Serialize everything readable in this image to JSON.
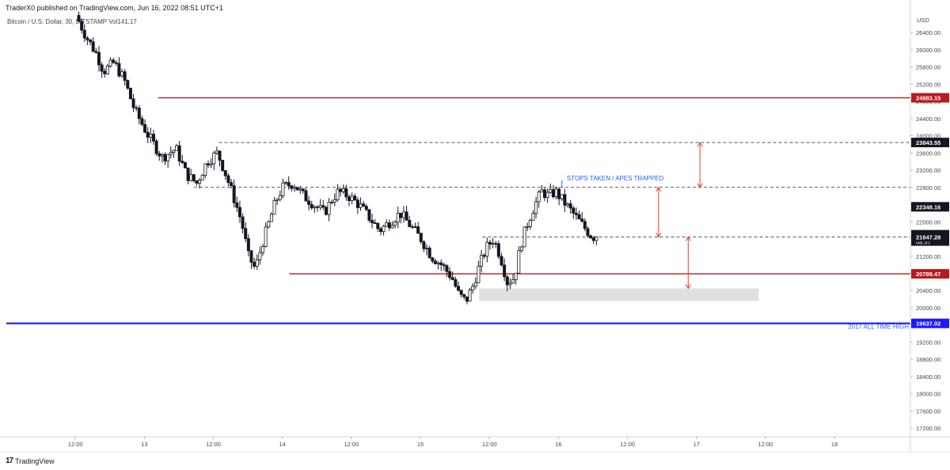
{
  "header": {
    "publisher": "TraderX0 published on TradingView.com, Jun 16, 2022 08:51 UTC+1",
    "symbol": "Bitcoin / U.S. Dollar, 30, BITSTAMP",
    "volume": "Vol141.17"
  },
  "footer": {
    "logo_mark": "17",
    "logo_text": "TradingView"
  },
  "colors": {
    "up": "#ffffff",
    "down": "#131722",
    "red_line": "#b71c1c",
    "blue_line": "#1a1aff",
    "arrow": "#e53935",
    "zone": "#e0e0e2",
    "dash": "#555555",
    "last_price": "#131722"
  },
  "chart_data": {
    "type": "candlestick",
    "title": "Bitcoin / U.S. Dollar, 30, BITSTAMP",
    "ylabel": "USD",
    "ylim": [
      17000,
      26900
    ],
    "yticks": [
      "26400.00",
      "26000.00",
      "25600.00",
      "25200.00",
      "24800.00",
      "24400.00",
      "24000.00",
      "23600.00",
      "23200.00",
      "22800.00",
      "22400.00",
      "22000.00",
      "21600.00",
      "21200.00",
      "20800.00",
      "20400.00",
      "20000.00",
      "19600.00",
      "19200.00",
      "18800.00",
      "18400.00",
      "18000.00",
      "17600.00",
      "17200.00"
    ],
    "xrange": [
      0,
      13.1
    ],
    "xticks": [
      {
        "label": "12:00",
        "pos": 1.0
      },
      {
        "label": "13",
        "pos": 2.0
      },
      {
        "label": "12:00",
        "pos": 3.0
      },
      {
        "label": "14",
        "pos": 4.0
      },
      {
        "label": "12:00",
        "pos": 5.0
      },
      {
        "label": "15",
        "pos": 6.0
      },
      {
        "label": "12:00",
        "pos": 7.0
      },
      {
        "label": "16",
        "pos": 8.0
      },
      {
        "label": "12:00",
        "pos": 9.0
      },
      {
        "label": "17",
        "pos": 10.0
      },
      {
        "label": "12:00",
        "pos": 11.0
      },
      {
        "label": "18",
        "pos": 12.0
      }
    ],
    "price_path": [
      [
        1.05,
        26800
      ],
      [
        1.2,
        26300
      ],
      [
        1.35,
        25900
      ],
      [
        1.45,
        25500
      ],
      [
        1.6,
        25700
      ],
      [
        1.75,
        25300
      ],
      [
        1.9,
        24600
      ],
      [
        2.1,
        24000
      ],
      [
        2.3,
        23500
      ],
      [
        2.5,
        23700
      ],
      [
        2.65,
        23100
      ],
      [
        2.8,
        22900
      ],
      [
        2.95,
        23400
      ],
      [
        3.1,
        23600
      ],
      [
        3.2,
        23200
      ],
      [
        3.35,
        22500
      ],
      [
        3.45,
        22000
      ],
      [
        3.55,
        21200
      ],
      [
        3.65,
        20900
      ],
      [
        3.75,
        21500
      ],
      [
        3.85,
        22000
      ],
      [
        3.95,
        22500
      ],
      [
        4.05,
        22800
      ],
      [
        4.2,
        22900
      ],
      [
        4.35,
        22600
      ],
      [
        4.5,
        22400
      ],
      [
        4.65,
        22200
      ],
      [
        4.75,
        22500
      ],
      [
        4.85,
        22700
      ],
      [
        5.0,
        22600
      ],
      [
        5.15,
        22400
      ],
      [
        5.3,
        22100
      ],
      [
        5.45,
        21800
      ],
      [
        5.6,
        22000
      ],
      [
        5.75,
        22200
      ],
      [
        5.9,
        21900
      ],
      [
        6.05,
        21600
      ],
      [
        6.2,
        21200
      ],
      [
        6.35,
        21000
      ],
      [
        6.5,
        20700
      ],
      [
        6.6,
        20300
      ],
      [
        6.7,
        20150
      ],
      [
        6.8,
        20500
      ],
      [
        6.9,
        21000
      ],
      [
        7.0,
        21400
      ],
      [
        7.1,
        21600
      ],
      [
        7.2,
        21200
      ],
      [
        7.3,
        20600
      ],
      [
        7.4,
        20700
      ],
      [
        7.5,
        21500
      ],
      [
        7.6,
        22000
      ],
      [
        7.7,
        22400
      ],
      [
        7.8,
        22700
      ],
      [
        7.9,
        22600
      ],
      [
        8.0,
        22700
      ],
      [
        8.1,
        22500
      ],
      [
        8.2,
        22300
      ],
      [
        8.3,
        22100
      ],
      [
        8.4,
        21900
      ],
      [
        8.5,
        21700
      ],
      [
        8.55,
        21650
      ]
    ],
    "levels": [
      {
        "price": 24883.15,
        "label": "24883.15",
        "style": "red",
        "x_start": 2.2
      },
      {
        "price": 23843.55,
        "label": "23843.55",
        "style": "dash",
        "x_start": 3.08
      },
      {
        "price": 22800.0,
        "label": "",
        "style": "dash",
        "x_start": 2.72
      },
      {
        "price": 21647.28,
        "label": "",
        "style": "dash",
        "x_start": 6.9
      },
      {
        "price": 20789.47,
        "label": "20789.47",
        "style": "red",
        "x_start": 4.1
      },
      {
        "price": 19637.02,
        "label": "19637.02",
        "style": "blue",
        "x_start": 0.0
      }
    ],
    "price_tags": [
      {
        "price": 22348.16,
        "label": "22348.16"
      },
      {
        "price": 21699.17,
        "label": "21699.17",
        "countdown": "08:37"
      },
      {
        "price": 21647.28,
        "label": "21647.28"
      }
    ],
    "zone": {
      "x_from": 6.85,
      "x_to": 10.9,
      "price_top": 20450,
      "price_bottom": 20160
    },
    "arrows": [
      {
        "x": 10.05,
        "from": 23843.55,
        "to": 22800
      },
      {
        "x": 9.45,
        "from": 22800,
        "to": 21647.28
      },
      {
        "x": 9.88,
        "from": 21647.28,
        "to": 20450
      }
    ],
    "annotations": [
      {
        "text": "STOPS TAKEN / APES TRAPPED",
        "x": 8.12,
        "price": 22960
      },
      {
        "text": "2017 ALL TIME HIGH",
        "x": 11.9,
        "price": 19510
      }
    ],
    "wick_marker": {
      "x": 8.05,
      "from": 22800,
      "to": 22960
    }
  }
}
